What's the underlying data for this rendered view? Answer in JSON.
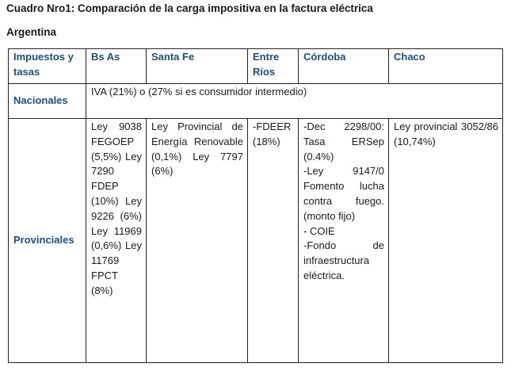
{
  "title": "Cuadro Nro1: Comparación de la carga impositiva en la factura eléctrica",
  "subtitle": "Argentina",
  "table": {
    "headers": [
      "Impuestos y tasas",
      "Bs As",
      "Santa Fe",
      "Entre Ríos",
      "Córdoba",
      "Chaco"
    ],
    "nacionales": {
      "label": "Nacionales",
      "value": "IVA (21%) o (27% si es consumidor intermedio)"
    },
    "provinciales": {
      "label": "Provinciales",
      "bs_as": "Ley 9038 FEGOEP (5,5%) Ley 7290 FDEP (10%) Ley 9226 (6%) Ley 11969 (0,6%) Ley 11769 FPCT (8%)",
      "santa_fe": "Ley Provincial de Energía Renovable (0,1%) Ley 7797 (6%)",
      "entre_rios": "-FDEER (18%)",
      "cordoba": [
        "-Dec 2298/00: Tasa ERSep (0.4%)",
        "-Ley 9147/0 Fomento lucha contra fuego. (monto fijo)",
        "- COIE",
        "-Fondo de infraestructura eléctrica."
      ],
      "chaco": "Ley provincial 3052/86 (10,74%)"
    }
  },
  "colors": {
    "header_text": "#1f4e79",
    "body_text": "#1a1a1a",
    "border": "#222222"
  }
}
